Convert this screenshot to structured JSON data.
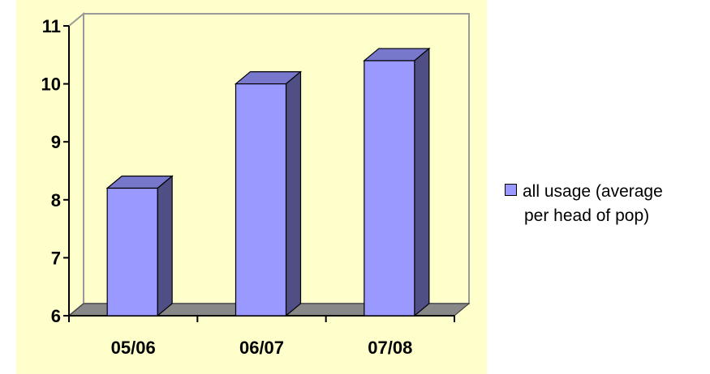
{
  "chart_data": {
    "type": "bar",
    "categories": [
      "05/06",
      "06/07",
      "07/08"
    ],
    "series": [
      {
        "name": "all usage (average per head of pop)",
        "values": [
          8.2,
          10.0,
          10.4
        ]
      }
    ],
    "ylim": [
      6,
      11
    ],
    "yticks": [
      6,
      7,
      8,
      9,
      10,
      11
    ],
    "title": "",
    "xlabel": "",
    "ylabel": "",
    "grid": false,
    "legend": "right",
    "colors": {
      "bar_front": "#9999ff",
      "bar_side": "#4f4f86",
      "bar_top": "#7777cc",
      "plot_background": "#ffffcc",
      "floor": "#888888"
    }
  },
  "legend": {
    "line1": "all usage (average",
    "line2": "per head of pop)"
  }
}
